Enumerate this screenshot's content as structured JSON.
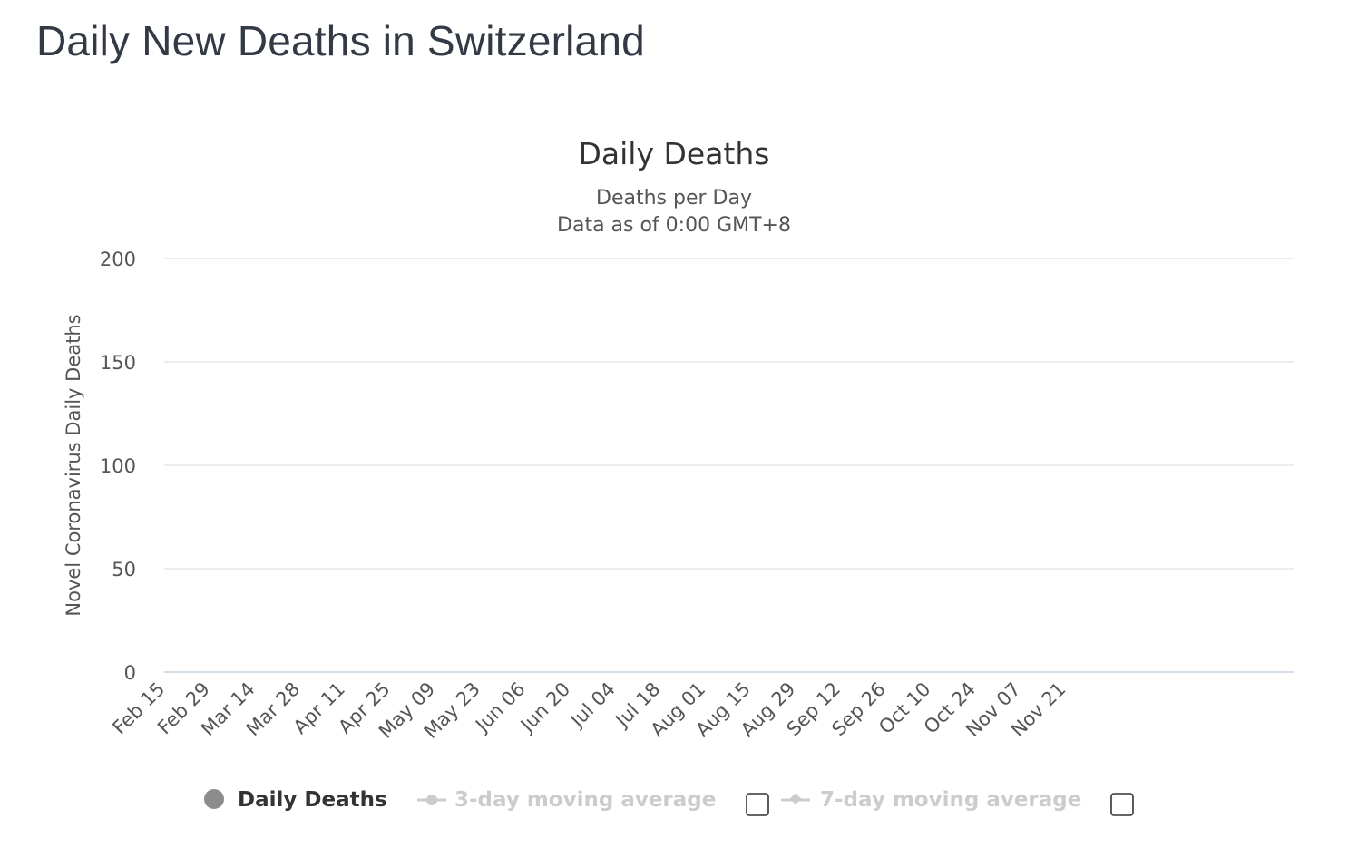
{
  "page": {
    "heading": "Daily New Deaths in Switzerland"
  },
  "colors": {
    "bar": "#8c8c8c",
    "grid": "#e6e6e6",
    "axis": "#c5d3e0",
    "text": "#333333",
    "muted": "#555555",
    "legend_inactive": "#cccccc"
  },
  "chart_data": {
    "type": "bar",
    "title": "Daily Deaths",
    "subtitle_lines": [
      "Deaths per Day",
      "Data as of 0:00 GMT+8"
    ],
    "ylabel": "Novel Coronavirus Daily Deaths",
    "xlabel": "",
    "ylim": [
      0,
      200
    ],
    "yticks": [
      0,
      50,
      100,
      150,
      200
    ],
    "x_start": "2020-02-15",
    "xtick_labels": [
      "Feb 15",
      "Feb 29",
      "Mar 14",
      "Mar 28",
      "Apr 11",
      "Apr 25",
      "May 09",
      "May 23",
      "Jun 06",
      "Jun 20",
      "Jul 04",
      "Jul 18",
      "Aug 01",
      "Aug 15",
      "Aug 29",
      "Sep 12",
      "Sep 26",
      "Oct 10",
      "Oct 24",
      "Nov 07",
      "Nov 21"
    ],
    "grid": true,
    "legend_position": "bottom",
    "series": [
      {
        "name": "Daily Deaths",
        "values": [
          0,
          0,
          0,
          0,
          0,
          0,
          0,
          0,
          0,
          0,
          0,
          0,
          0,
          0,
          0,
          0,
          0,
          0,
          0,
          0,
          0,
          0,
          0,
          0,
          0,
          0,
          0,
          0,
          0,
          0,
          0,
          0,
          0,
          0,
          0,
          0,
          0,
          0,
          0,
          0,
          0,
          0,
          0,
          0,
          0,
          0,
          0,
          0,
          0,
          0,
          0,
          0,
          0,
          0,
          0,
          0,
          0,
          0,
          0,
          0,
          0,
          0,
          0,
          0,
          0,
          0,
          0,
          0,
          0,
          0,
          0,
          0,
          0,
          0,
          0,
          0,
          0,
          0,
          0,
          0,
          0,
          0,
          0,
          0,
          0,
          0,
          0,
          0,
          0,
          0,
          0,
          0,
          0,
          0,
          0,
          0,
          0,
          0,
          0,
          0,
          0,
          0,
          0,
          0,
          0,
          0,
          0,
          0,
          0,
          0,
          0,
          0,
          0,
          0,
          0,
          0,
          0,
          0,
          0,
          0,
          0,
          0,
          0,
          0,
          0,
          0,
          0,
          0,
          0,
          0,
          0,
          0,
          0,
          0,
          0,
          0,
          0,
          0,
          0,
          0,
          0,
          0,
          0,
          0,
          0,
          0,
          0,
          0,
          0,
          0,
          0,
          0,
          0,
          0,
          0,
          0,
          0,
          0,
          0,
          0,
          0,
          0,
          0,
          0,
          0,
          0,
          0,
          0,
          0,
          0,
          0,
          0,
          0,
          0,
          0,
          0,
          0,
          0,
          0,
          0,
          0,
          0,
          0,
          0,
          0,
          0,
          0,
          0,
          0,
          0,
          0,
          0,
          0,
          0,
          0,
          0,
          0,
          0,
          0,
          0,
          0,
          0,
          0,
          0,
          0,
          0,
          0,
          0,
          0,
          0,
          0,
          0,
          0,
          0,
          0,
          0,
          0,
          0,
          0,
          0,
          0,
          0,
          0,
          0,
          0,
          0,
          0,
          0,
          0,
          0,
          0,
          0,
          0,
          0,
          0,
          0,
          0,
          0,
          0,
          0,
          0,
          0,
          0,
          0,
          0,
          0,
          0,
          0,
          0,
          0,
          0,
          0,
          0,
          0,
          0,
          0,
          0,
          0,
          0,
          0,
          0,
          0,
          0,
          0,
          0,
          0,
          0,
          0,
          0,
          0,
          0,
          0,
          0,
          0,
          0,
          0,
          0,
          0,
          0,
          0,
          0,
          0,
          0,
          0,
          0,
          0,
          0,
          0,
          0,
          0,
          0,
          0,
          0,
          0,
          0,
          0,
          0,
          0,
          0,
          0,
          0,
          0,
          0,
          0,
          0,
          0,
          0,
          0,
          0,
          0,
          0,
          0,
          0,
          0,
          0,
          0,
          0,
          0,
          0,
          0,
          0,
          0,
          0,
          0,
          0,
          0,
          0,
          0,
          0,
          0,
          0,
          0,
          0,
          0,
          0,
          0,
          0,
          0,
          0,
          0,
          0,
          0,
          0,
          0,
          0,
          0,
          0,
          0,
          0,
          0,
          0
        ]
      },
      {
        "name": "3-day moving average",
        "values": [],
        "visible": false
      },
      {
        "name": "7-day moving average",
        "values": [],
        "visible": false
      }
    ]
  }
}
